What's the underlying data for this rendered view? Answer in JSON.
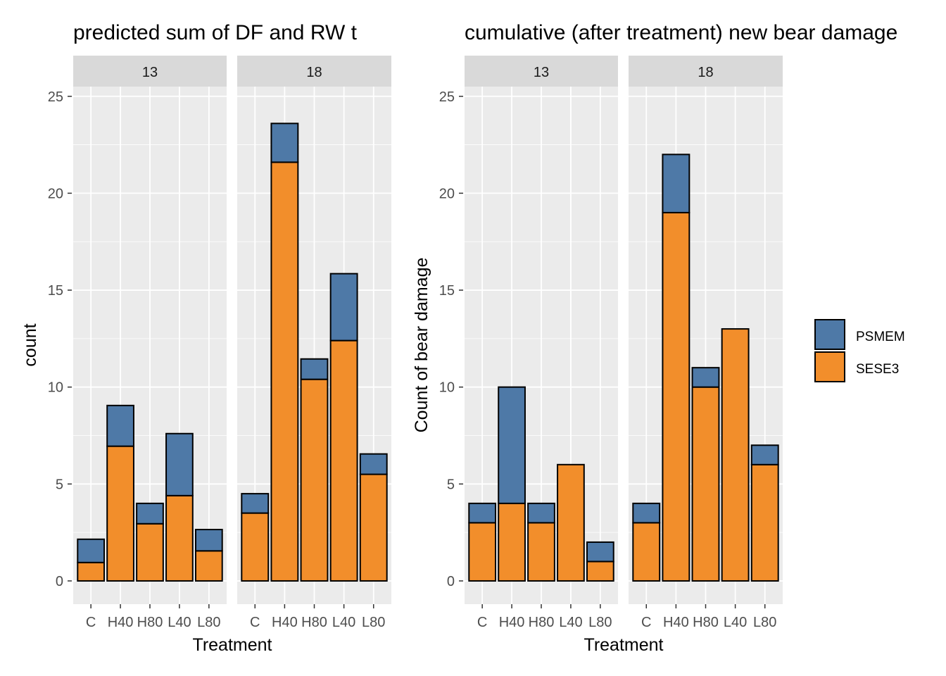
{
  "colors": {
    "PSMEM": "#4e79a7",
    "SESE3": "#f28e2b",
    "panel_bg": "#ebebeb",
    "strip_bg": "#d9d9d9",
    "grid": "#ffffff"
  },
  "legend": {
    "items": [
      {
        "key": "PSMEM",
        "label": "PSMEM"
      },
      {
        "key": "SESE3",
        "label": "SESE3"
      }
    ]
  },
  "chart_data": [
    {
      "type": "bar",
      "stacked": true,
      "title": "predicted sum of DF and RW t",
      "xlabel": "Treatment",
      "ylabel": "count",
      "ylim": [
        -1.2,
        25.5
      ],
      "yticks": [
        0,
        5,
        10,
        15,
        20,
        25
      ],
      "categories": [
        "C",
        "H40",
        "H80",
        "L40",
        "L80"
      ],
      "facets": [
        {
          "label": "13",
          "series": [
            {
              "name": "SESE3",
              "values": [
                0.95,
                6.95,
                2.95,
                4.4,
                1.55
              ]
            },
            {
              "name": "PSMEM",
              "values": [
                1.2,
                2.1,
                1.05,
                3.2,
                1.1
              ]
            }
          ]
        },
        {
          "label": "18",
          "series": [
            {
              "name": "SESE3",
              "values": [
                3.5,
                21.6,
                10.4,
                12.4,
                5.5
              ]
            },
            {
              "name": "PSMEM",
              "values": [
                1.0,
                2.0,
                1.05,
                3.45,
                1.05
              ]
            }
          ]
        }
      ]
    },
    {
      "type": "bar",
      "stacked": true,
      "title": "cumulative (after treatment) new bear damage",
      "xlabel": "Treatment",
      "ylabel": "Count of bear damage",
      "ylim": [
        -1.2,
        25.5
      ],
      "yticks": [
        0,
        5,
        10,
        15,
        20,
        25
      ],
      "categories": [
        "C",
        "H40",
        "H80",
        "L40",
        "L80"
      ],
      "facets": [
        {
          "label": "13",
          "series": [
            {
              "name": "SESE3",
              "values": [
                3,
                4,
                3,
                6,
                1
              ]
            },
            {
              "name": "PSMEM",
              "values": [
                1,
                6,
                1,
                0,
                1
              ]
            }
          ]
        },
        {
          "label": "18",
          "series": [
            {
              "name": "SESE3",
              "values": [
                3,
                19,
                10,
                13,
                6
              ]
            },
            {
              "name": "PSMEM",
              "values": [
                1,
                3,
                1,
                0,
                1
              ]
            }
          ]
        }
      ]
    }
  ]
}
